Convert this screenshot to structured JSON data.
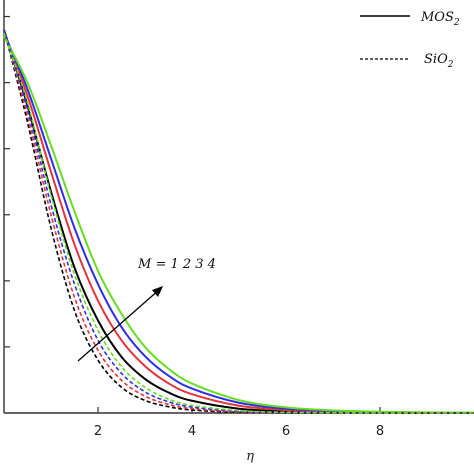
{
  "chart_data": {
    "type": "line",
    "title": "",
    "xlabel": "η",
    "ylabel": "",
    "xlim": [
      0,
      10
    ],
    "ylim": [
      0,
      1.25
    ],
    "xticks": [
      2,
      4,
      6,
      8
    ],
    "xtick_labels": [
      "2",
      "4",
      "6",
      "8"
    ],
    "yticks": [
      0.2,
      0.4,
      0.6,
      0.8,
      1.0,
      1.2
    ],
    "grid": false,
    "legend_position": "top-right",
    "legend": [
      {
        "label": "MOS",
        "sub": "2",
        "style": "solid",
        "color": "#000000"
      },
      {
        "label": "SiO",
        "sub": "2",
        "style": "dashed",
        "color": "#000000"
      }
    ],
    "annotation": {
      "text": "M = 1 2 3 4"
    },
    "x": [
      0,
      0.5,
      1,
      1.5,
      2,
      2.5,
      3,
      3.5,
      4,
      5,
      6,
      7,
      8,
      9,
      10
    ],
    "series": [
      {
        "group": "MOS2",
        "M": 1,
        "style": "solid",
        "color": "#000000",
        "values": [
          1.16,
          0.93,
          0.67,
          0.44,
          0.28,
          0.17,
          0.103,
          0.062,
          0.037,
          0.013,
          0.005,
          0.002,
          0.001,
          0.0,
          0.0
        ]
      },
      {
        "group": "MOS2",
        "M": 2,
        "style": "solid",
        "color": "#e8333a",
        "values": [
          1.15,
          0.96,
          0.73,
          0.51,
          0.34,
          0.22,
          0.142,
          0.09,
          0.057,
          0.022,
          0.009,
          0.004,
          0.002,
          0.001,
          0.0
        ]
      },
      {
        "group": "MOS2",
        "M": 3,
        "style": "solid",
        "color": "#2e2ee8",
        "values": [
          1.15,
          0.98,
          0.77,
          0.56,
          0.39,
          0.26,
          0.172,
          0.113,
          0.074,
          0.031,
          0.013,
          0.006,
          0.003,
          0.001,
          0.0
        ]
      },
      {
        "group": "MOS2",
        "M": 4,
        "style": "solid",
        "color": "#66dd22",
        "values": [
          1.14,
          1.0,
          0.81,
          0.61,
          0.43,
          0.3,
          0.2,
          0.134,
          0.089,
          0.039,
          0.017,
          0.008,
          0.004,
          0.002,
          0.001
        ]
      },
      {
        "group": "SiO2",
        "M": 1,
        "style": "dashed",
        "color": "#000000",
        "values": [
          1.16,
          0.88,
          0.56,
          0.31,
          0.16,
          0.078,
          0.038,
          0.019,
          0.009,
          0.002,
          0.0,
          0.0,
          0.0,
          0.0,
          0.0
        ]
      },
      {
        "group": "SiO2",
        "M": 2,
        "style": "dashed",
        "color": "#e8333a",
        "values": [
          1.16,
          0.9,
          0.6,
          0.35,
          0.19,
          0.099,
          0.051,
          0.026,
          0.013,
          0.003,
          0.001,
          0.0,
          0.0,
          0.0,
          0.0
        ]
      },
      {
        "group": "SiO2",
        "M": 3,
        "style": "dashed",
        "color": "#2e2ee8",
        "values": [
          1.16,
          0.92,
          0.63,
          0.39,
          0.22,
          0.12,
          0.064,
          0.034,
          0.018,
          0.005,
          0.001,
          0.0,
          0.0,
          0.0,
          0.0
        ]
      },
      {
        "group": "SiO2",
        "M": 4,
        "style": "dashed",
        "color": "#66dd22",
        "values": [
          1.15,
          0.94,
          0.66,
          0.42,
          0.25,
          0.14,
          0.078,
          0.042,
          0.023,
          0.007,
          0.002,
          0.001,
          0.0,
          0.0,
          0.0
        ]
      }
    ]
  }
}
